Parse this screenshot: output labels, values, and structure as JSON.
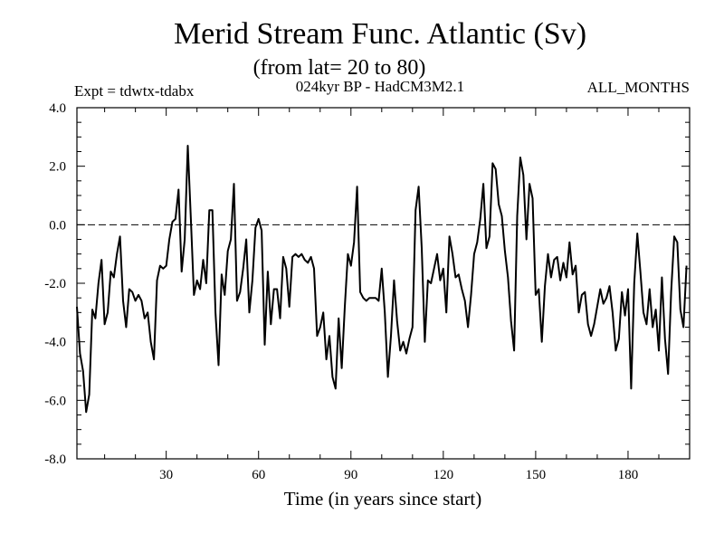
{
  "chart_data": {
    "type": "line",
    "title": "Merid Stream Func. Atlantic (Sv)",
    "subtitle": "(from lat= 20 to 80)",
    "experiment": "Expt = tdwtx-tdabx",
    "run_label": "024kyr BP - HadCM3M2.1",
    "period": "ALL_MONTHS",
    "xlabel": "Time (in years since start)",
    "ylabel": "",
    "xlim": [
      1,
      200
    ],
    "ylim": [
      -8.0,
      4.0
    ],
    "x_ticks": [
      30,
      60,
      90,
      120,
      150,
      180
    ],
    "y_ticks": [
      "4.0",
      "2.0",
      "0.0",
      "-2.0",
      "-4.0",
      "-6.0",
      "-8.0"
    ],
    "reference_line": 0.0,
    "series": [
      {
        "name": "Meridional stream function",
        "x_start": 1,
        "x_step": 1,
        "values": [
          -2.8,
          -4.4,
          -5.0,
          -6.4,
          -5.8,
          -2.9,
          -3.2,
          -2.0,
          -1.2,
          -3.4,
          -3.0,
          -1.6,
          -1.8,
          -1.0,
          -0.4,
          -2.6,
          -3.5,
          -2.2,
          -2.3,
          -2.6,
          -2.4,
          -2.6,
          -3.2,
          -3.0,
          -4.0,
          -4.6,
          -1.9,
          -1.4,
          -1.5,
          -1.4,
          -0.5,
          0.1,
          0.2,
          1.2,
          -1.6,
          -0.5,
          2.7,
          0.2,
          -2.4,
          -1.9,
          -2.2,
          -1.2,
          -2.0,
          0.5,
          0.5,
          -3.0,
          -4.8,
          -1.7,
          -2.4,
          -0.9,
          -0.5,
          1.4,
          -2.6,
          -2.3,
          -1.5,
          -0.5,
          -3.0,
          -1.9,
          -0.1,
          0.2,
          -0.2,
          -4.1,
          -1.6,
          -3.4,
          -2.2,
          -2.2,
          -3.2,
          -1.1,
          -1.5,
          -2.8,
          -1.1,
          -1.0,
          -1.1,
          -1.0,
          -1.2,
          -1.3,
          -1.1,
          -1.5,
          -3.8,
          -3.5,
          -3.0,
          -4.6,
          -3.8,
          -5.2,
          -5.6,
          -3.2,
          -4.9,
          -2.8,
          -1.0,
          -1.4,
          -0.6,
          1.3,
          -2.3,
          -2.5,
          -2.6,
          -2.5,
          -2.5,
          -2.5,
          -2.6,
          -1.5,
          -3.0,
          -5.2,
          -3.8,
          -1.9,
          -3.3,
          -4.3,
          -4.0,
          -4.4,
          -3.9,
          -3.5,
          0.5,
          1.3,
          -0.8,
          -4.0,
          -1.9,
          -2.0,
          -1.5,
          -1.0,
          -1.9,
          -1.5,
          -3.0,
          -0.4,
          -1.0,
          -1.8,
          -1.7,
          -2.2,
          -2.6,
          -3.5,
          -2.4,
          -1.0,
          -0.6,
          0.2,
          1.4,
          -0.8,
          -0.4,
          2.1,
          1.9,
          0.7,
          0.3,
          -0.9,
          -1.8,
          -3.3,
          -4.3,
          0.3,
          2.3,
          1.7,
          -0.5,
          1.4,
          0.9,
          -2.4,
          -2.2,
          -4.0,
          -2.1,
          -1.0,
          -1.8,
          -1.2,
          -1.1,
          -1.9,
          -1.3,
          -1.8,
          -0.6,
          -1.7,
          -1.4,
          -3.0,
          -2.4,
          -2.3,
          -3.4,
          -3.8,
          -3.4,
          -2.8,
          -2.2,
          -2.7,
          -2.5,
          -2.1,
          -3.0,
          -4.3,
          -3.9,
          -2.3,
          -3.1,
          -2.2,
          -5.6,
          -2.0,
          -0.3,
          -1.6,
          -3.0,
          -3.4,
          -2.2,
          -3.5,
          -2.9,
          -4.3,
          -1.8,
          -3.9,
          -5.1,
          -2.3,
          -0.4,
          -0.6,
          -2.9,
          -3.5,
          -1.4
        ]
      }
    ]
  }
}
